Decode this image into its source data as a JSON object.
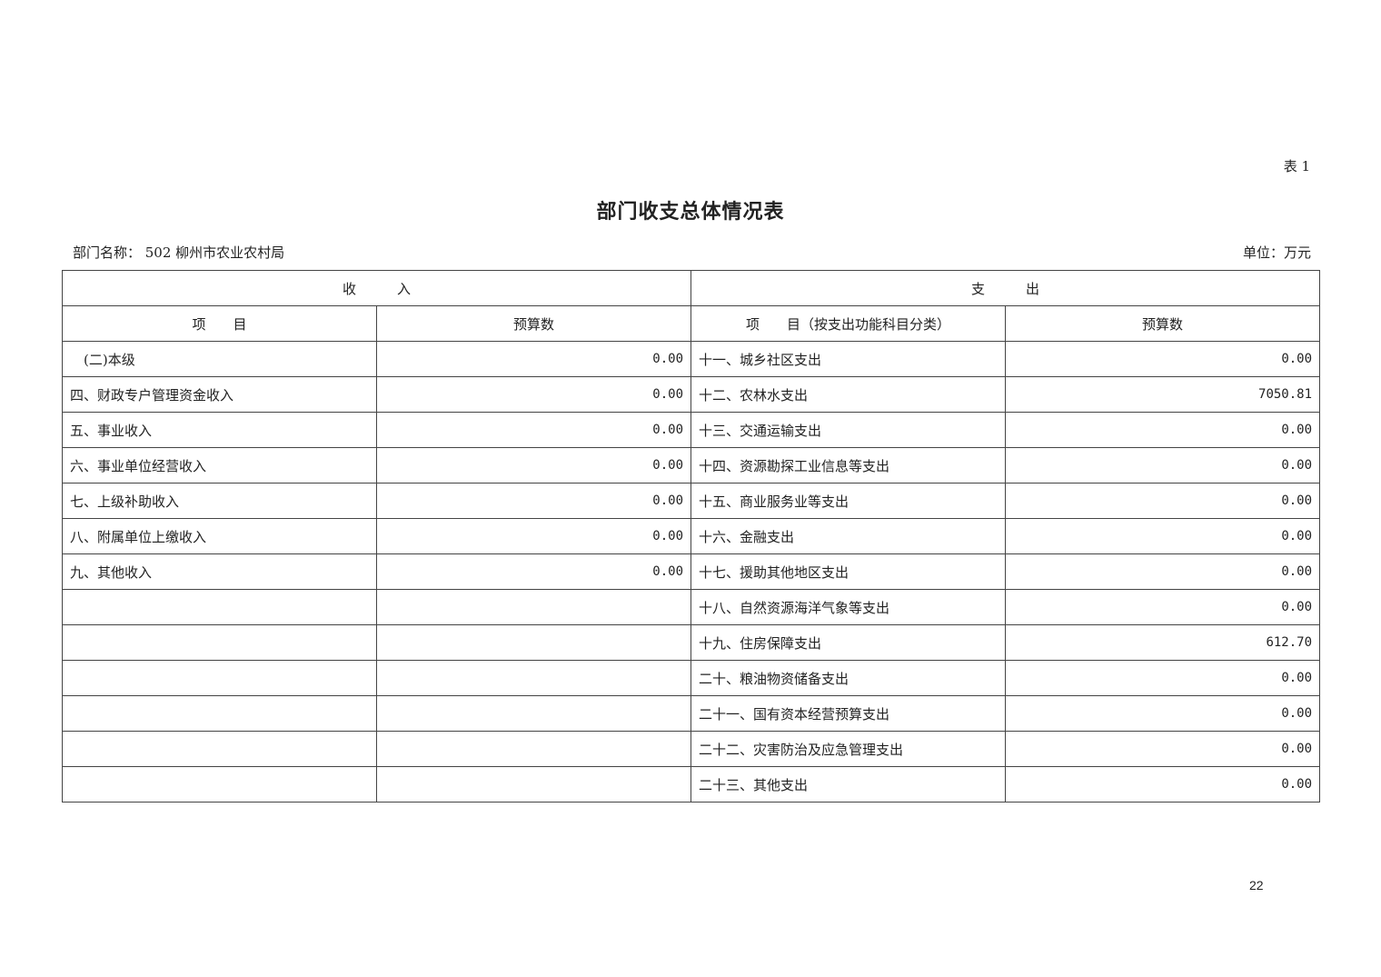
{
  "doc": {
    "table_no": "表 1",
    "title": "部门收支总体情况表",
    "dept_label": "部门名称：  502 柳州市农业农村局",
    "unit_label": "单位：万元",
    "page_number": "22"
  },
  "table": {
    "section_headers": [
      "收　　　入",
      "支　　　出"
    ],
    "column_headers": [
      "项　　目",
      "预算数",
      "项　　目（按支出功能科目分类）",
      "预算数"
    ],
    "rows": [
      {
        "income_item": "　(二)本级",
        "income_amount": "0.00",
        "expense_item": "十一、城乡社区支出",
        "expense_amount": "0.00"
      },
      {
        "income_item": "四、财政专户管理资金收入",
        "income_amount": "0.00",
        "expense_item": "十二、农林水支出",
        "expense_amount": "7050.81"
      },
      {
        "income_item": "五、事业收入",
        "income_amount": "0.00",
        "expense_item": "十三、交通运输支出",
        "expense_amount": "0.00"
      },
      {
        "income_item": "六、事业单位经营收入",
        "income_amount": "0.00",
        "expense_item": "十四、资源勘探工业信息等支出",
        "expense_amount": "0.00"
      },
      {
        "income_item": "七、上级补助收入",
        "income_amount": "0.00",
        "expense_item": "十五、商业服务业等支出",
        "expense_amount": "0.00"
      },
      {
        "income_item": "八、附属单位上缴收入",
        "income_amount": "0.00",
        "expense_item": "十六、金融支出",
        "expense_amount": "0.00"
      },
      {
        "income_item": "九、其他收入",
        "income_amount": "0.00",
        "expense_item": "十七、援助其他地区支出",
        "expense_amount": "0.00"
      },
      {
        "income_item": "",
        "income_amount": "",
        "expense_item": "十八、自然资源海洋气象等支出",
        "expense_amount": "0.00"
      },
      {
        "income_item": "",
        "income_amount": "",
        "expense_item": "十九、住房保障支出",
        "expense_amount": "612.70"
      },
      {
        "income_item": "",
        "income_amount": "",
        "expense_item": "二十、粮油物资储备支出",
        "expense_amount": "0.00"
      },
      {
        "income_item": "",
        "income_amount": "",
        "expense_item": "二十一、国有资本经营预算支出",
        "expense_amount": "0.00"
      },
      {
        "income_item": "",
        "income_amount": "",
        "expense_item": "二十二、灾害防治及应急管理支出",
        "expense_amount": "0.00"
      },
      {
        "income_item": "",
        "income_amount": "",
        "expense_item": "二十三、其他支出",
        "expense_amount": "0.00"
      }
    ]
  }
}
